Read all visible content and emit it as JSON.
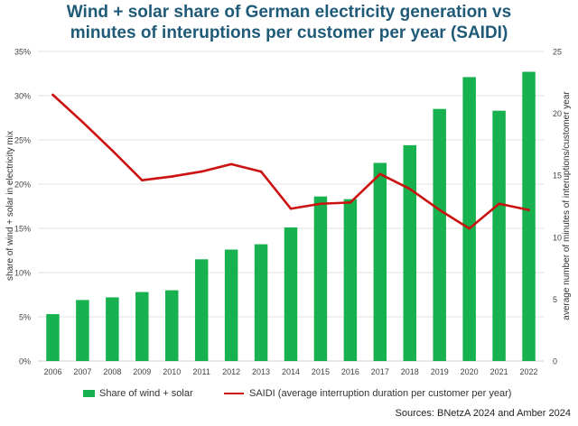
{
  "chart_data": {
    "type": "bar+line",
    "title_lines": [
      "Wind + solar share of German electricity generation vs",
      "minutes of interuptions per customer per year (SAIDI)"
    ],
    "categories": [
      "2006",
      "2007",
      "2008",
      "2009",
      "2010",
      "2011",
      "2012",
      "2013",
      "2014",
      "2015",
      "2016",
      "2017",
      "2018",
      "2019",
      "2020",
      "2021",
      "2022"
    ],
    "series": [
      {
        "name": "Share of wind + solar",
        "type": "bar",
        "axis": "left",
        "color": "#18b14f",
        "values": [
          5.3,
          6.9,
          7.2,
          7.8,
          8.0,
          11.5,
          12.6,
          13.2,
          15.1,
          18.6,
          18.3,
          22.4,
          24.4,
          28.5,
          32.1,
          28.3,
          32.7
        ]
      },
      {
        "name": "SAIDI (average interruption duration per customer per year)",
        "type": "line",
        "axis": "right",
        "color": "#cc1111",
        "values": [
          21.5,
          19.3,
          17.0,
          14.6,
          14.9,
          15.3,
          15.9,
          15.3,
          12.3,
          12.7,
          12.8,
          15.1,
          13.9,
          12.2,
          10.7,
          12.7,
          12.2
        ]
      }
    ],
    "left_axis": {
      "label": "share of wind + solar in electricity mix",
      "range": [
        0,
        35
      ],
      "ticks": [
        "0%",
        "5%",
        "10%",
        "15%",
        "20%",
        "25%",
        "30%",
        "35%"
      ]
    },
    "right_axis": {
      "label": "average number of minutes of interuptions/customer year",
      "range": [
        0,
        25
      ],
      "ticks": [
        "0",
        "5",
        "10",
        "15",
        "20",
        "25"
      ]
    },
    "grid": true,
    "legend_position": "bottom",
    "source": "Sources: BNetzA 2024 and Amber 2024"
  },
  "legend": {
    "bar_label": "Share of wind + solar",
    "line_label": "SAIDI (average interruption duration per customer per year)"
  }
}
